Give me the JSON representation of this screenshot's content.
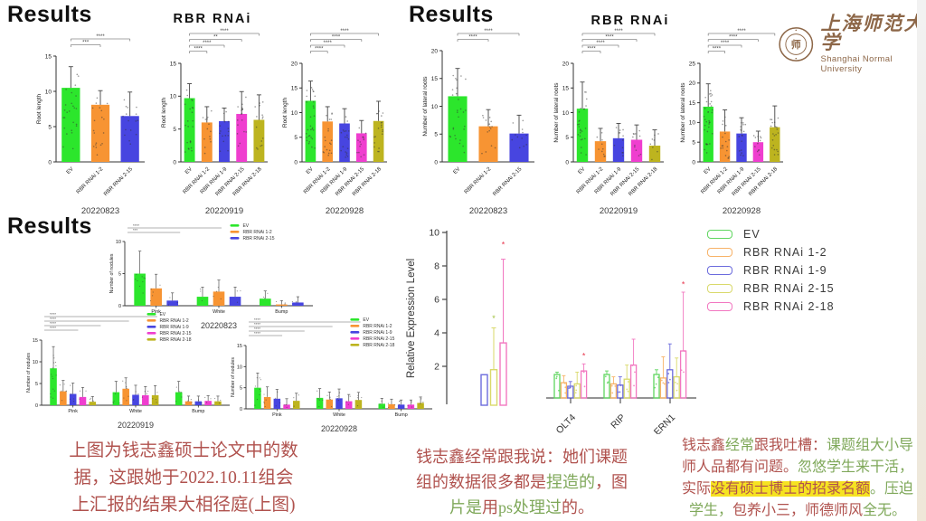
{
  "headings": {
    "results_top_left": "Results",
    "results_top_right": "Results",
    "results_bottom_left": "Results"
  },
  "titles": {
    "rbr_left": "RBR  RNAi",
    "rbr_right": "RBR  RNAi"
  },
  "logo": {
    "cn": "上海师范大学",
    "en": "Shanghai Normal University",
    "color": "#8d6748",
    "seal_glyph": "师"
  },
  "series_colors": {
    "EV": "#2ce62c",
    "RBR RNAi 1-2": "#f79433",
    "RBR RNAi 1-9": "#4745e0",
    "RBR RNAi 2-15": "#ef3ecf",
    "RBR RNAi 2-18": "#bdb41f"
  },
  "qpcr_legend": {
    "items": [
      {
        "label": "EV",
        "color": "#5fd65f"
      },
      {
        "label": "RBR  RNAi  1-2",
        "color": "#f7b267"
      },
      {
        "label": "RBR  RNAi  1-9",
        "color": "#6b6bdd"
      },
      {
        "label": "RBR  RNAi  2-15",
        "color": "#d9d96a"
      },
      {
        "label": "RBR  RNAi  2-18",
        "color": "#f277c0"
      }
    ]
  },
  "note_colors": {
    "red": "#b0524e",
    "green": "#7fa85a",
    "highlight": "#f6e321"
  },
  "notes": {
    "left": {
      "lines": [
        [
          {
            "t": "上图为钱志鑫硕士论文中的数",
            "c": "red"
          }
        ],
        [
          {
            "t": "据，这跟她于2022.10.11组会",
            "c": "red"
          }
        ],
        [
          {
            "t": "上汇报的结果大相径庭(上图)",
            "c": "red"
          }
        ]
      ]
    },
    "middle": {
      "lines": [
        [
          {
            "t": "钱志鑫经常跟我说：她们课题",
            "c": "red"
          }
        ],
        [
          {
            "t": "组的数据很多都是",
            "c": "red"
          },
          {
            "t": "捏造的",
            "c": "green"
          },
          {
            "t": "，图",
            "c": "red"
          }
        ],
        [
          {
            "t": "片是",
            "c": "green"
          },
          {
            "t": "用",
            "c": "red"
          },
          {
            "t": "ps处理",
            "c": "green"
          },
          {
            "t": "过",
            "c": "green"
          },
          {
            "t": "的。",
            "c": "red"
          }
        ]
      ]
    },
    "right": {
      "lines": [
        [
          {
            "t": "钱志鑫",
            "c": "red"
          },
          {
            "t": "经常",
            "c": "green"
          },
          {
            "t": "跟我吐槽：",
            "c": "red"
          },
          {
            "t": "课题组大小导",
            "c": "green"
          }
        ],
        [
          {
            "t": "师人品",
            "c": "red"
          },
          {
            "t": "都有问题。",
            "c": "red"
          },
          {
            "t": "忽悠学生来干活，",
            "c": "green"
          }
        ],
        [
          {
            "t": "实际",
            "c": "red"
          },
          {
            "t": "没有硕士博士的招录名额",
            "c": "red",
            "hl": true
          },
          {
            "t": "。",
            "c": "green"
          },
          {
            "t": "压迫",
            "c": "green"
          }
        ],
        [
          {
            "t": "学生，",
            "c": "green"
          },
          {
            "t": "包养小三，",
            "c": "red"
          },
          {
            "t": "师德师风",
            "c": "red"
          },
          {
            "t": "全无。",
            "c": "green"
          }
        ]
      ]
    }
  },
  "chart_data": [
    {
      "id": "root-length-20220823",
      "type": "bar",
      "ylabel": "Root length",
      "date": "20220823",
      "ylim": [
        0,
        15
      ],
      "yticks": [
        0,
        5,
        10,
        15
      ],
      "categories": [
        "EV",
        "RBR RNAi 1-2",
        "RBR RNAi 2-15"
      ],
      "values": [
        10.5,
        8.1,
        6.5
      ],
      "errors": [
        3.0,
        2.0,
        3.4
      ],
      "colors": [
        "#2ce62c",
        "#f79433",
        "#4745e0"
      ],
      "sig": [
        {
          "from": 0,
          "to": 2,
          "stars": "****"
        },
        {
          "from": 0,
          "to": 1,
          "stars": "***"
        }
      ]
    },
    {
      "id": "root-length-20220919",
      "type": "bar",
      "ylabel": "Root length",
      "date": "20220919",
      "ylim": [
        0,
        15
      ],
      "yticks": [
        0,
        5,
        10,
        15
      ],
      "categories": [
        "EV",
        "RBR RNAi 1-2",
        "RBR RNAi 1-9",
        "RBR RNAi 2-15",
        "RBR RNAi 2-18"
      ],
      "values": [
        9.7,
        6.0,
        6.2,
        7.3,
        6.4
      ],
      "errors": [
        2.2,
        2.4,
        2.0,
        3.4,
        3.8
      ],
      "colors": [
        "#2ce62c",
        "#f79433",
        "#4745e0",
        "#ef3ecf",
        "#bdb41f"
      ],
      "sig": [
        {
          "from": 0,
          "to": 4,
          "stars": "****"
        },
        {
          "from": 0,
          "to": 3,
          "stars": "**"
        },
        {
          "from": 0,
          "to": 2,
          "stars": "****"
        },
        {
          "from": 0,
          "to": 1,
          "stars": "****"
        }
      ]
    },
    {
      "id": "root-length-20220928",
      "type": "bar",
      "ylabel": "Root length",
      "date": "20220928",
      "ylim": [
        0,
        20
      ],
      "yticks": [
        0,
        5,
        10,
        15,
        20
      ],
      "categories": [
        "EV",
        "RBR RNAi 1-2",
        "RBR RNAi 1-9",
        "RBR RNAi 2-15",
        "RBR RNAi 2-18"
      ],
      "values": [
        12.4,
        8.2,
        7.8,
        5.8,
        8.3
      ],
      "errors": [
        4.0,
        3.0,
        3.0,
        2.6,
        4.0
      ],
      "colors": [
        "#2ce62c",
        "#f79433",
        "#4745e0",
        "#ef3ecf",
        "#bdb41f"
      ],
      "sig": [
        {
          "from": 0,
          "to": 4,
          "stars": "****"
        },
        {
          "from": 0,
          "to": 3,
          "stars": "****"
        },
        {
          "from": 0,
          "to": 2,
          "stars": "****"
        },
        {
          "from": 0,
          "to": 1,
          "stars": "****"
        }
      ]
    },
    {
      "id": "lateral-roots-20220823",
      "type": "bar",
      "ylabel": "Number of lateral roots",
      "date": "20220823",
      "ylim": [
        0,
        20
      ],
      "yticks": [
        0,
        5,
        10,
        15,
        20
      ],
      "categories": [
        "EV",
        "RBR RNAi 1-2",
        "RBR RNAi 2-15"
      ],
      "values": [
        11.8,
        6.4,
        5.1
      ],
      "errors": [
        5.0,
        3.0,
        3.3
      ],
      "colors": [
        "#2ce62c",
        "#f79433",
        "#4745e0"
      ],
      "sig": [
        {
          "from": 0,
          "to": 2,
          "stars": "****"
        },
        {
          "from": 0,
          "to": 1,
          "stars": "****"
        }
      ]
    },
    {
      "id": "lateral-roots-20220919",
      "type": "bar",
      "ylabel": "Number of lateral roots",
      "date": "20220919",
      "ylim": [
        0,
        20
      ],
      "yticks": [
        0,
        5,
        10,
        15,
        20
      ],
      "categories": [
        "EV",
        "RBR RNAi 1-2",
        "RBR RNAi 1-9",
        "RBR RNAi 2-15",
        "RBR RNAi 2-18"
      ],
      "values": [
        10.8,
        4.2,
        4.8,
        4.5,
        3.3
      ],
      "errors": [
        5.4,
        2.6,
        3.0,
        3.0,
        3.2
      ],
      "colors": [
        "#2ce62c",
        "#f79433",
        "#4745e0",
        "#ef3ecf",
        "#bdb41f"
      ],
      "sig": [
        {
          "from": 0,
          "to": 4,
          "stars": "****"
        },
        {
          "from": 0,
          "to": 3,
          "stars": "****"
        },
        {
          "from": 0,
          "to": 2,
          "stars": "****"
        },
        {
          "from": 0,
          "to": 1,
          "stars": "****"
        }
      ]
    },
    {
      "id": "lateral-roots-20220928",
      "type": "bar",
      "ylabel": "Number of lateral roots",
      "date": "20220928",
      "ylim": [
        0,
        25
      ],
      "yticks": [
        0,
        5,
        10,
        15,
        20,
        25
      ],
      "categories": [
        "EV",
        "RBR RNAi 1-2",
        "RBR RNAi 1-9",
        "RBR RNAi 2-15",
        "RBR RNAi 2-18"
      ],
      "values": [
        14.0,
        7.7,
        7.2,
        5.0,
        8.8
      ],
      "errors": [
        5.8,
        5.5,
        4.0,
        2.8,
        5.4
      ],
      "colors": [
        "#2ce62c",
        "#f79433",
        "#4745e0",
        "#ef3ecf",
        "#bdb41f"
      ],
      "sig": [
        {
          "from": 0,
          "to": 4,
          "stars": "****"
        },
        {
          "from": 0,
          "to": 3,
          "stars": "****"
        },
        {
          "from": 0,
          "to": 2,
          "stars": "****"
        },
        {
          "from": 0,
          "to": 1,
          "stars": "****"
        }
      ]
    },
    {
      "id": "nodules-20220823",
      "type": "grouped_bar",
      "ylabel": "Number of nodules",
      "date": "20220823",
      "ylim": [
        0,
        10
      ],
      "yticks": [
        0,
        5,
        10
      ],
      "legend_position": "top-right",
      "categories": [
        "Pink",
        "White",
        "Bump"
      ],
      "series": [
        {
          "name": "EV",
          "color": "#2ce62c",
          "values": [
            5.0,
            1.4,
            1.1
          ],
          "errors": [
            3.5,
            1.5,
            1.2
          ]
        },
        {
          "name": "RBR RNAi 1-2",
          "color": "#f79433",
          "values": [
            2.7,
            2.2,
            0.2
          ],
          "errors": [
            2.2,
            1.8,
            0.6
          ]
        },
        {
          "name": "RBR RNAi 2-15",
          "color": "#4745e0",
          "values": [
            0.8,
            1.4,
            0.5
          ],
          "errors": [
            1.2,
            1.5,
            0.9
          ]
        }
      ],
      "sig": [
        {
          "frac": 0.5,
          "stars": "****"
        },
        {
          "frac": 0.28,
          "stars": "***"
        }
      ]
    },
    {
      "id": "nodules-20220919",
      "type": "grouped_bar",
      "ylabel": "Number of nodules",
      "date": "20220919",
      "ylim": [
        0,
        15
      ],
      "yticks": [
        0,
        5,
        10,
        15
      ],
      "legend_position": "top-right",
      "categories": [
        "Pink",
        "White",
        "Bump"
      ],
      "series": [
        {
          "name": "EV",
          "color": "#2ce62c",
          "values": [
            8.5,
            3.0,
            3.0
          ],
          "errors": [
            5.0,
            2.5,
            2.5
          ]
        },
        {
          "name": "RBR RNAi 1-2",
          "color": "#f79433",
          "values": [
            3.2,
            3.8,
            0.9
          ],
          "errors": [
            2.5,
            2.5,
            1.2
          ]
        },
        {
          "name": "RBR RNAi 1-9",
          "color": "#4745e0",
          "values": [
            2.6,
            2.4,
            0.9
          ],
          "errors": [
            2.5,
            2.2,
            1.2
          ]
        },
        {
          "name": "RBR RNAi 2-15",
          "color": "#ef3ecf",
          "values": [
            1.9,
            2.3,
            1.0
          ],
          "errors": [
            2.2,
            2.0,
            1.2
          ]
        },
        {
          "name": "RBR RNAi 2-18",
          "color": "#bdb41f",
          "values": [
            0.8,
            2.3,
            0.9
          ],
          "errors": [
            1.2,
            2.2,
            1.2
          ]
        }
      ],
      "sig": [
        {
          "frac": 0.6,
          "stars": "****"
        },
        {
          "frac": 0.45,
          "stars": "****"
        },
        {
          "frac": 0.3,
          "stars": "****"
        },
        {
          "frac": 0.18,
          "stars": "****"
        }
      ]
    },
    {
      "id": "nodules-20220928",
      "type": "grouped_bar",
      "ylabel": "Number of nodules",
      "date": "20220928",
      "ylim": [
        0,
        15
      ],
      "yticks": [
        0,
        5,
        10,
        15
      ],
      "legend_position": "top-right",
      "categories": [
        "Pink",
        "White",
        "Bump"
      ],
      "series": [
        {
          "name": "EV",
          "color": "#2ce62c",
          "values": [
            5.0,
            2.6,
            1.2
          ],
          "errors": [
            3.5,
            2.2,
            1.3
          ]
        },
        {
          "name": "RBR RNAi 1-2",
          "color": "#f79433",
          "values": [
            2.8,
            2.2,
            1.1
          ],
          "errors": [
            2.4,
            1.8,
            1.2
          ]
        },
        {
          "name": "RBR RNAi 1-9",
          "color": "#4745e0",
          "values": [
            2.4,
            2.5,
            1.0
          ],
          "errors": [
            2.2,
            2.2,
            1.1
          ]
        },
        {
          "name": "RBR RNAi 2-15",
          "color": "#ef3ecf",
          "values": [
            1.0,
            1.8,
            1.0
          ],
          "errors": [
            1.4,
            1.6,
            1.1
          ]
        },
        {
          "name": "RBR RNAi 2-18",
          "color": "#bdb41f",
          "values": [
            1.9,
            2.1,
            1.4
          ],
          "errors": [
            1.8,
            1.8,
            1.4
          ]
        }
      ],
      "sig": [
        {
          "frac": 0.6,
          "stars": "****"
        },
        {
          "frac": 0.45,
          "stars": "****"
        },
        {
          "frac": 0.3,
          "stars": "****"
        },
        {
          "frac": 0.18,
          "stars": "****"
        }
      ]
    },
    {
      "id": "qpcr",
      "type": "qpcr",
      "ylabel": "Relative Expression Level",
      "ylim": [
        0,
        10
      ],
      "yticks": [
        2,
        4,
        6,
        8,
        10
      ],
      "cluster": [
        {
          "name": "RBR RNAi 1-9",
          "color": "#6b6bdd",
          "value": 1.5,
          "error": 0
        },
        {
          "name": "RBR RNAi 2-15",
          "color": "#d9d96a",
          "value": 1.8,
          "error": 2.5,
          "star": {
            "y": 4.7,
            "color": "#9ebf3a"
          }
        },
        {
          "name": "RBR RNAi 2-18",
          "color": "#f277c0",
          "value": 3.4,
          "error": 5.0,
          "star": {
            "y": 9.1,
            "color": "#e8384f"
          }
        }
      ],
      "categories": [
        "OLT4",
        "RIP",
        "ERN1"
      ],
      "series": [
        {
          "name": "EV",
          "color": "#5fd65f",
          "values": [
            1.0,
            1.0,
            1.0
          ],
          "errors": [
            0.1,
            0.15,
            0.2
          ]
        },
        {
          "name": "RBR RNAi 1-2",
          "color": "#f7b267",
          "values": [
            0.65,
            0.6,
            0.85
          ],
          "errors": [
            0.3,
            0.3,
            0.9
          ]
        },
        {
          "name": "RBR RNAi 1-9",
          "color": "#6b6bdd",
          "values": [
            0.5,
            0.55,
            1.2
          ],
          "errors": [
            0.2,
            0.35,
            1.1
          ]
        },
        {
          "name": "RBR RNAi 2-15",
          "color": "#d9d96a",
          "values": [
            0.6,
            0.8,
            0.9
          ],
          "errors": [
            0.5,
            0.6,
            0.8
          ]
        },
        {
          "name": "RBR RNAi 2-18",
          "color": "#f277c0",
          "values": [
            1.15,
            1.4,
            2.0
          ],
          "errors": [
            0.3,
            1.1,
            2.5
          ]
        }
      ],
      "stars": [
        {
          "cat": 0,
          "series": 4,
          "y": 1.55,
          "color": "#e8384f"
        },
        {
          "cat": 2,
          "series": 4,
          "y": 4.6,
          "color": "#e8384f"
        }
      ]
    }
  ]
}
